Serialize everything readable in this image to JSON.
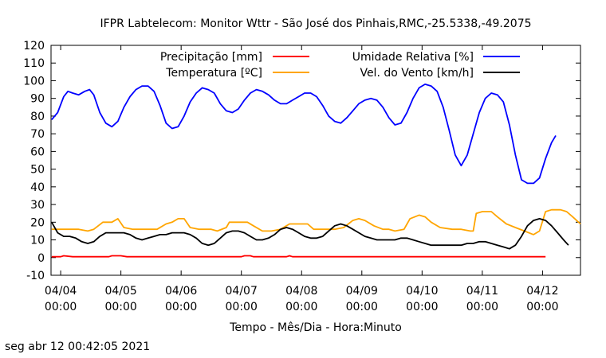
{
  "chart_data": {
    "type": "line",
    "title": "IFPR Labtelecom: Monitor Wttr - São José dos Pinhais,RMC,-25.5338,-49.2075",
    "xlabel": "Tempo - Mês/Dia - Hora:Minuto",
    "ylabel": "",
    "ylim": [
      -10,
      120
    ],
    "yticks": [
      -10,
      0,
      10,
      20,
      30,
      40,
      50,
      60,
      70,
      80,
      90,
      100,
      110,
      120
    ],
    "xlim": [
      "04/03 20:00",
      "04/12 00:30"
    ],
    "xticks": [
      {
        "day": 1,
        "line1": "04/04",
        "line2": "00:00"
      },
      {
        "day": 2,
        "line1": "04/05",
        "line2": "00:00"
      },
      {
        "day": 3,
        "line1": "04/06",
        "line2": "00:00"
      },
      {
        "day": 4,
        "line1": "04/07",
        "line2": "00:00"
      },
      {
        "day": 5,
        "line1": "04/08",
        "line2": "00:00"
      },
      {
        "day": 6,
        "line1": "04/09",
        "line2": "00:00"
      },
      {
        "day": 7,
        "line1": "04/10",
        "line2": "00:00"
      },
      {
        "day": 8,
        "line1": "04/11",
        "line2": "00:00"
      },
      {
        "day": 9,
        "line1": "04/12",
        "line2": "00:00"
      }
    ],
    "x_unit_note_days_from": "04/03 00:00",
    "grid": false,
    "legend_position": "top",
    "series": [
      {
        "name": "Precipitação [mm]",
        "color": "#ff0000",
        "points": [
          [
            0.85,
            0.5
          ],
          [
            1.0,
            0.5
          ],
          [
            1.05,
            1
          ],
          [
            1.2,
            0.5
          ],
          [
            1.4,
            0.5
          ],
          [
            1.8,
            0.5
          ],
          [
            1.85,
            1
          ],
          [
            2.0,
            1
          ],
          [
            2.1,
            0.5
          ],
          [
            3.0,
            0.5
          ],
          [
            4.0,
            0.5
          ],
          [
            4.05,
            1
          ],
          [
            4.15,
            1
          ],
          [
            4.2,
            0.5
          ],
          [
            4.75,
            0.5
          ],
          [
            4.8,
            1
          ],
          [
            4.85,
            0.5
          ],
          [
            6.0,
            0.5
          ],
          [
            7.0,
            0.5
          ],
          [
            8.0,
            0.5
          ],
          [
            9.05,
            0.5
          ]
        ]
      },
      {
        "name": "Temperatura [ºC]",
        "color": "#ffa500",
        "points": [
          [
            0.85,
            16
          ],
          [
            1.0,
            16
          ],
          [
            1.3,
            16
          ],
          [
            1.45,
            15
          ],
          [
            1.55,
            16
          ],
          [
            1.7,
            20
          ],
          [
            1.85,
            20
          ],
          [
            1.95,
            22
          ],
          [
            2.05,
            17
          ],
          [
            2.2,
            16
          ],
          [
            2.4,
            16
          ],
          [
            2.6,
            16
          ],
          [
            2.75,
            19
          ],
          [
            2.85,
            20
          ],
          [
            2.95,
            22
          ],
          [
            3.05,
            22
          ],
          [
            3.15,
            17
          ],
          [
            3.3,
            16
          ],
          [
            3.5,
            16
          ],
          [
            3.6,
            15
          ],
          [
            3.75,
            17
          ],
          [
            3.8,
            20
          ],
          [
            4.0,
            20
          ],
          [
            4.1,
            20
          ],
          [
            4.2,
            18
          ],
          [
            4.35,
            15
          ],
          [
            4.5,
            15
          ],
          [
            4.65,
            16
          ],
          [
            4.8,
            19
          ],
          [
            5.0,
            19
          ],
          [
            5.1,
            19
          ],
          [
            5.2,
            16
          ],
          [
            5.4,
            16
          ],
          [
            5.55,
            16
          ],
          [
            5.7,
            17
          ],
          [
            5.85,
            21
          ],
          [
            5.95,
            22
          ],
          [
            6.05,
            21
          ],
          [
            6.2,
            18
          ],
          [
            6.35,
            16
          ],
          [
            6.45,
            16
          ],
          [
            6.55,
            15
          ],
          [
            6.7,
            16
          ],
          [
            6.8,
            22
          ],
          [
            6.95,
            24
          ],
          [
            7.05,
            23
          ],
          [
            7.15,
            20
          ],
          [
            7.3,
            17
          ],
          [
            7.5,
            16
          ],
          [
            7.65,
            16
          ],
          [
            7.8,
            15
          ],
          [
            7.85,
            15
          ],
          [
            7.9,
            25
          ],
          [
            8.0,
            26
          ],
          [
            8.15,
            26
          ],
          [
            8.25,
            23
          ],
          [
            8.4,
            19
          ],
          [
            8.55,
            17
          ],
          [
            8.7,
            15
          ],
          [
            8.85,
            13
          ],
          [
            8.95,
            15
          ],
          [
            9.05,
            26
          ],
          [
            9.15,
            27
          ],
          [
            9.3,
            27
          ],
          [
            9.4,
            26
          ],
          [
            9.5,
            23
          ],
          [
            9.63,
            19
          ]
        ]
      },
      {
        "name": "Umidade Relativa [%]",
        "color": "#0000ff",
        "points": [
          [
            0.85,
            78
          ],
          [
            0.95,
            82
          ],
          [
            1.05,
            91
          ],
          [
            1.12,
            94
          ],
          [
            1.2,
            93
          ],
          [
            1.3,
            92
          ],
          [
            1.4,
            94
          ],
          [
            1.48,
            95
          ],
          [
            1.55,
            92
          ],
          [
            1.65,
            82
          ],
          [
            1.75,
            76
          ],
          [
            1.85,
            74
          ],
          [
            1.95,
            77
          ],
          [
            2.05,
            85
          ],
          [
            2.15,
            91
          ],
          [
            2.25,
            95
          ],
          [
            2.35,
            97
          ],
          [
            2.45,
            97
          ],
          [
            2.55,
            94
          ],
          [
            2.65,
            86
          ],
          [
            2.75,
            76
          ],
          [
            2.85,
            73
          ],
          [
            2.95,
            74
          ],
          [
            3.05,
            80
          ],
          [
            3.15,
            88
          ],
          [
            3.25,
            93
          ],
          [
            3.35,
            96
          ],
          [
            3.45,
            95
          ],
          [
            3.55,
            93
          ],
          [
            3.65,
            87
          ],
          [
            3.75,
            83
          ],
          [
            3.85,
            82
          ],
          [
            3.95,
            84
          ],
          [
            4.05,
            89
          ],
          [
            4.15,
            93
          ],
          [
            4.25,
            95
          ],
          [
            4.35,
            94
          ],
          [
            4.45,
            92
          ],
          [
            4.55,
            89
          ],
          [
            4.65,
            87
          ],
          [
            4.75,
            87
          ],
          [
            4.85,
            89
          ],
          [
            4.95,
            91
          ],
          [
            5.05,
            93
          ],
          [
            5.15,
            93
          ],
          [
            5.25,
            91
          ],
          [
            5.35,
            86
          ],
          [
            5.45,
            80
          ],
          [
            5.55,
            77
          ],
          [
            5.65,
            76
          ],
          [
            5.75,
            79
          ],
          [
            5.85,
            83
          ],
          [
            5.95,
            87
          ],
          [
            6.05,
            89
          ],
          [
            6.15,
            90
          ],
          [
            6.25,
            89
          ],
          [
            6.35,
            85
          ],
          [
            6.45,
            79
          ],
          [
            6.55,
            75
          ],
          [
            6.65,
            76
          ],
          [
            6.75,
            82
          ],
          [
            6.85,
            90
          ],
          [
            6.95,
            96
          ],
          [
            7.05,
            98
          ],
          [
            7.15,
            97
          ],
          [
            7.25,
            94
          ],
          [
            7.35,
            85
          ],
          [
            7.45,
            72
          ],
          [
            7.55,
            58
          ],
          [
            7.65,
            52
          ],
          [
            7.75,
            58
          ],
          [
            7.85,
            70
          ],
          [
            7.95,
            82
          ],
          [
            8.05,
            90
          ],
          [
            8.15,
            93
          ],
          [
            8.25,
            92
          ],
          [
            8.35,
            88
          ],
          [
            8.45,
            75
          ],
          [
            8.55,
            58
          ],
          [
            8.65,
            44
          ],
          [
            8.75,
            42
          ],
          [
            8.85,
            42
          ],
          [
            8.95,
            45
          ],
          [
            9.05,
            56
          ],
          [
            9.15,
            65
          ],
          [
            9.22,
            69
          ]
        ]
      },
      {
        "name": "Vel. do Vento [km/h]",
        "color": "#000000",
        "points": [
          [
            0.85,
            20
          ],
          [
            0.95,
            14
          ],
          [
            1.05,
            12
          ],
          [
            1.15,
            12
          ],
          [
            1.25,
            11
          ],
          [
            1.35,
            9
          ],
          [
            1.45,
            8
          ],
          [
            1.55,
            9
          ],
          [
            1.65,
            12
          ],
          [
            1.75,
            14
          ],
          [
            1.85,
            14
          ],
          [
            1.95,
            14
          ],
          [
            2.05,
            14
          ],
          [
            2.15,
            13
          ],
          [
            2.25,
            11
          ],
          [
            2.35,
            10
          ],
          [
            2.45,
            11
          ],
          [
            2.55,
            12
          ],
          [
            2.65,
            13
          ],
          [
            2.75,
            13
          ],
          [
            2.85,
            14
          ],
          [
            2.95,
            14
          ],
          [
            3.05,
            14
          ],
          [
            3.15,
            13
          ],
          [
            3.25,
            11
          ],
          [
            3.35,
            8
          ],
          [
            3.45,
            7
          ],
          [
            3.55,
            8
          ],
          [
            3.65,
            11
          ],
          [
            3.75,
            14
          ],
          [
            3.85,
            15
          ],
          [
            3.95,
            15
          ],
          [
            4.05,
            14
          ],
          [
            4.15,
            12
          ],
          [
            4.25,
            10
          ],
          [
            4.35,
            10
          ],
          [
            4.45,
            11
          ],
          [
            4.55,
            13
          ],
          [
            4.65,
            16
          ],
          [
            4.75,
            17
          ],
          [
            4.85,
            16
          ],
          [
            4.95,
            14
          ],
          [
            5.05,
            12
          ],
          [
            5.15,
            11
          ],
          [
            5.25,
            11
          ],
          [
            5.35,
            12
          ],
          [
            5.45,
            15
          ],
          [
            5.55,
            18
          ],
          [
            5.65,
            19
          ],
          [
            5.75,
            18
          ],
          [
            5.85,
            16
          ],
          [
            5.95,
            14
          ],
          [
            6.05,
            12
          ],
          [
            6.15,
            11
          ],
          [
            6.25,
            10
          ],
          [
            6.35,
            10
          ],
          [
            6.45,
            10
          ],
          [
            6.55,
            10
          ],
          [
            6.65,
            11
          ],
          [
            6.75,
            11
          ],
          [
            6.85,
            10
          ],
          [
            6.95,
            9
          ],
          [
            7.05,
            8
          ],
          [
            7.15,
            7
          ],
          [
            7.25,
            7
          ],
          [
            7.35,
            7
          ],
          [
            7.45,
            7
          ],
          [
            7.55,
            7
          ],
          [
            7.65,
            7
          ],
          [
            7.75,
            8
          ],
          [
            7.85,
            8
          ],
          [
            7.95,
            9
          ],
          [
            8.05,
            9
          ],
          [
            8.15,
            8
          ],
          [
            8.25,
            7
          ],
          [
            8.35,
            6
          ],
          [
            8.45,
            5
          ],
          [
            8.55,
            7
          ],
          [
            8.65,
            12
          ],
          [
            8.75,
            18
          ],
          [
            8.85,
            21
          ],
          [
            8.95,
            22
          ],
          [
            9.05,
            21
          ],
          [
            9.15,
            18
          ],
          [
            9.25,
            14
          ],
          [
            9.35,
            10
          ],
          [
            9.43,
            7
          ]
        ]
      }
    ]
  },
  "timestamp": "seg abr 12 00:42:05 2021"
}
